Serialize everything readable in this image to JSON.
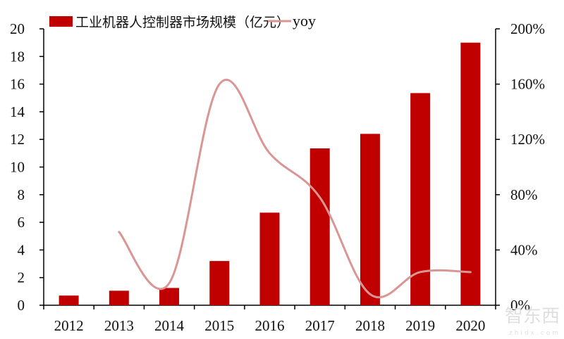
{
  "chart_data": {
    "type": "bar+line",
    "title": "",
    "categories": [
      "2012",
      "2013",
      "2014",
      "2015",
      "2016",
      "2017",
      "2018",
      "2019",
      "2020"
    ],
    "series": [
      {
        "name": "工业机器人控制器市场规模（亿元）",
        "type": "bar",
        "axis": "left",
        "color": "#c00000",
        "values": [
          0.7,
          1.05,
          1.25,
          3.2,
          6.7,
          11.35,
          12.4,
          15.35,
          19.0
        ]
      },
      {
        "name": "yoy",
        "type": "line",
        "axis": "right",
        "color": "#d99694",
        "values": [
          null,
          53,
          16,
          160,
          110,
          78,
          8,
          24,
          24
        ]
      }
    ],
    "left_axis": {
      "ylim": [
        0,
        20
      ],
      "ticks": [
        "0",
        "2",
        "4",
        "6",
        "8",
        "10",
        "12",
        "14",
        "16",
        "18",
        "20"
      ]
    },
    "right_axis": {
      "ylim": [
        0,
        200
      ],
      "ticks": [
        "0%",
        "40%",
        "80%",
        "120%",
        "160%",
        "200%"
      ]
    },
    "legend_position": "top",
    "grid": false
  },
  "legend": {
    "bar_label": "工业机器人控制器市场规模（亿元）",
    "line_label": "yoy"
  },
  "watermark": {
    "text": "智东西",
    "subtext": "zhidx.com"
  }
}
